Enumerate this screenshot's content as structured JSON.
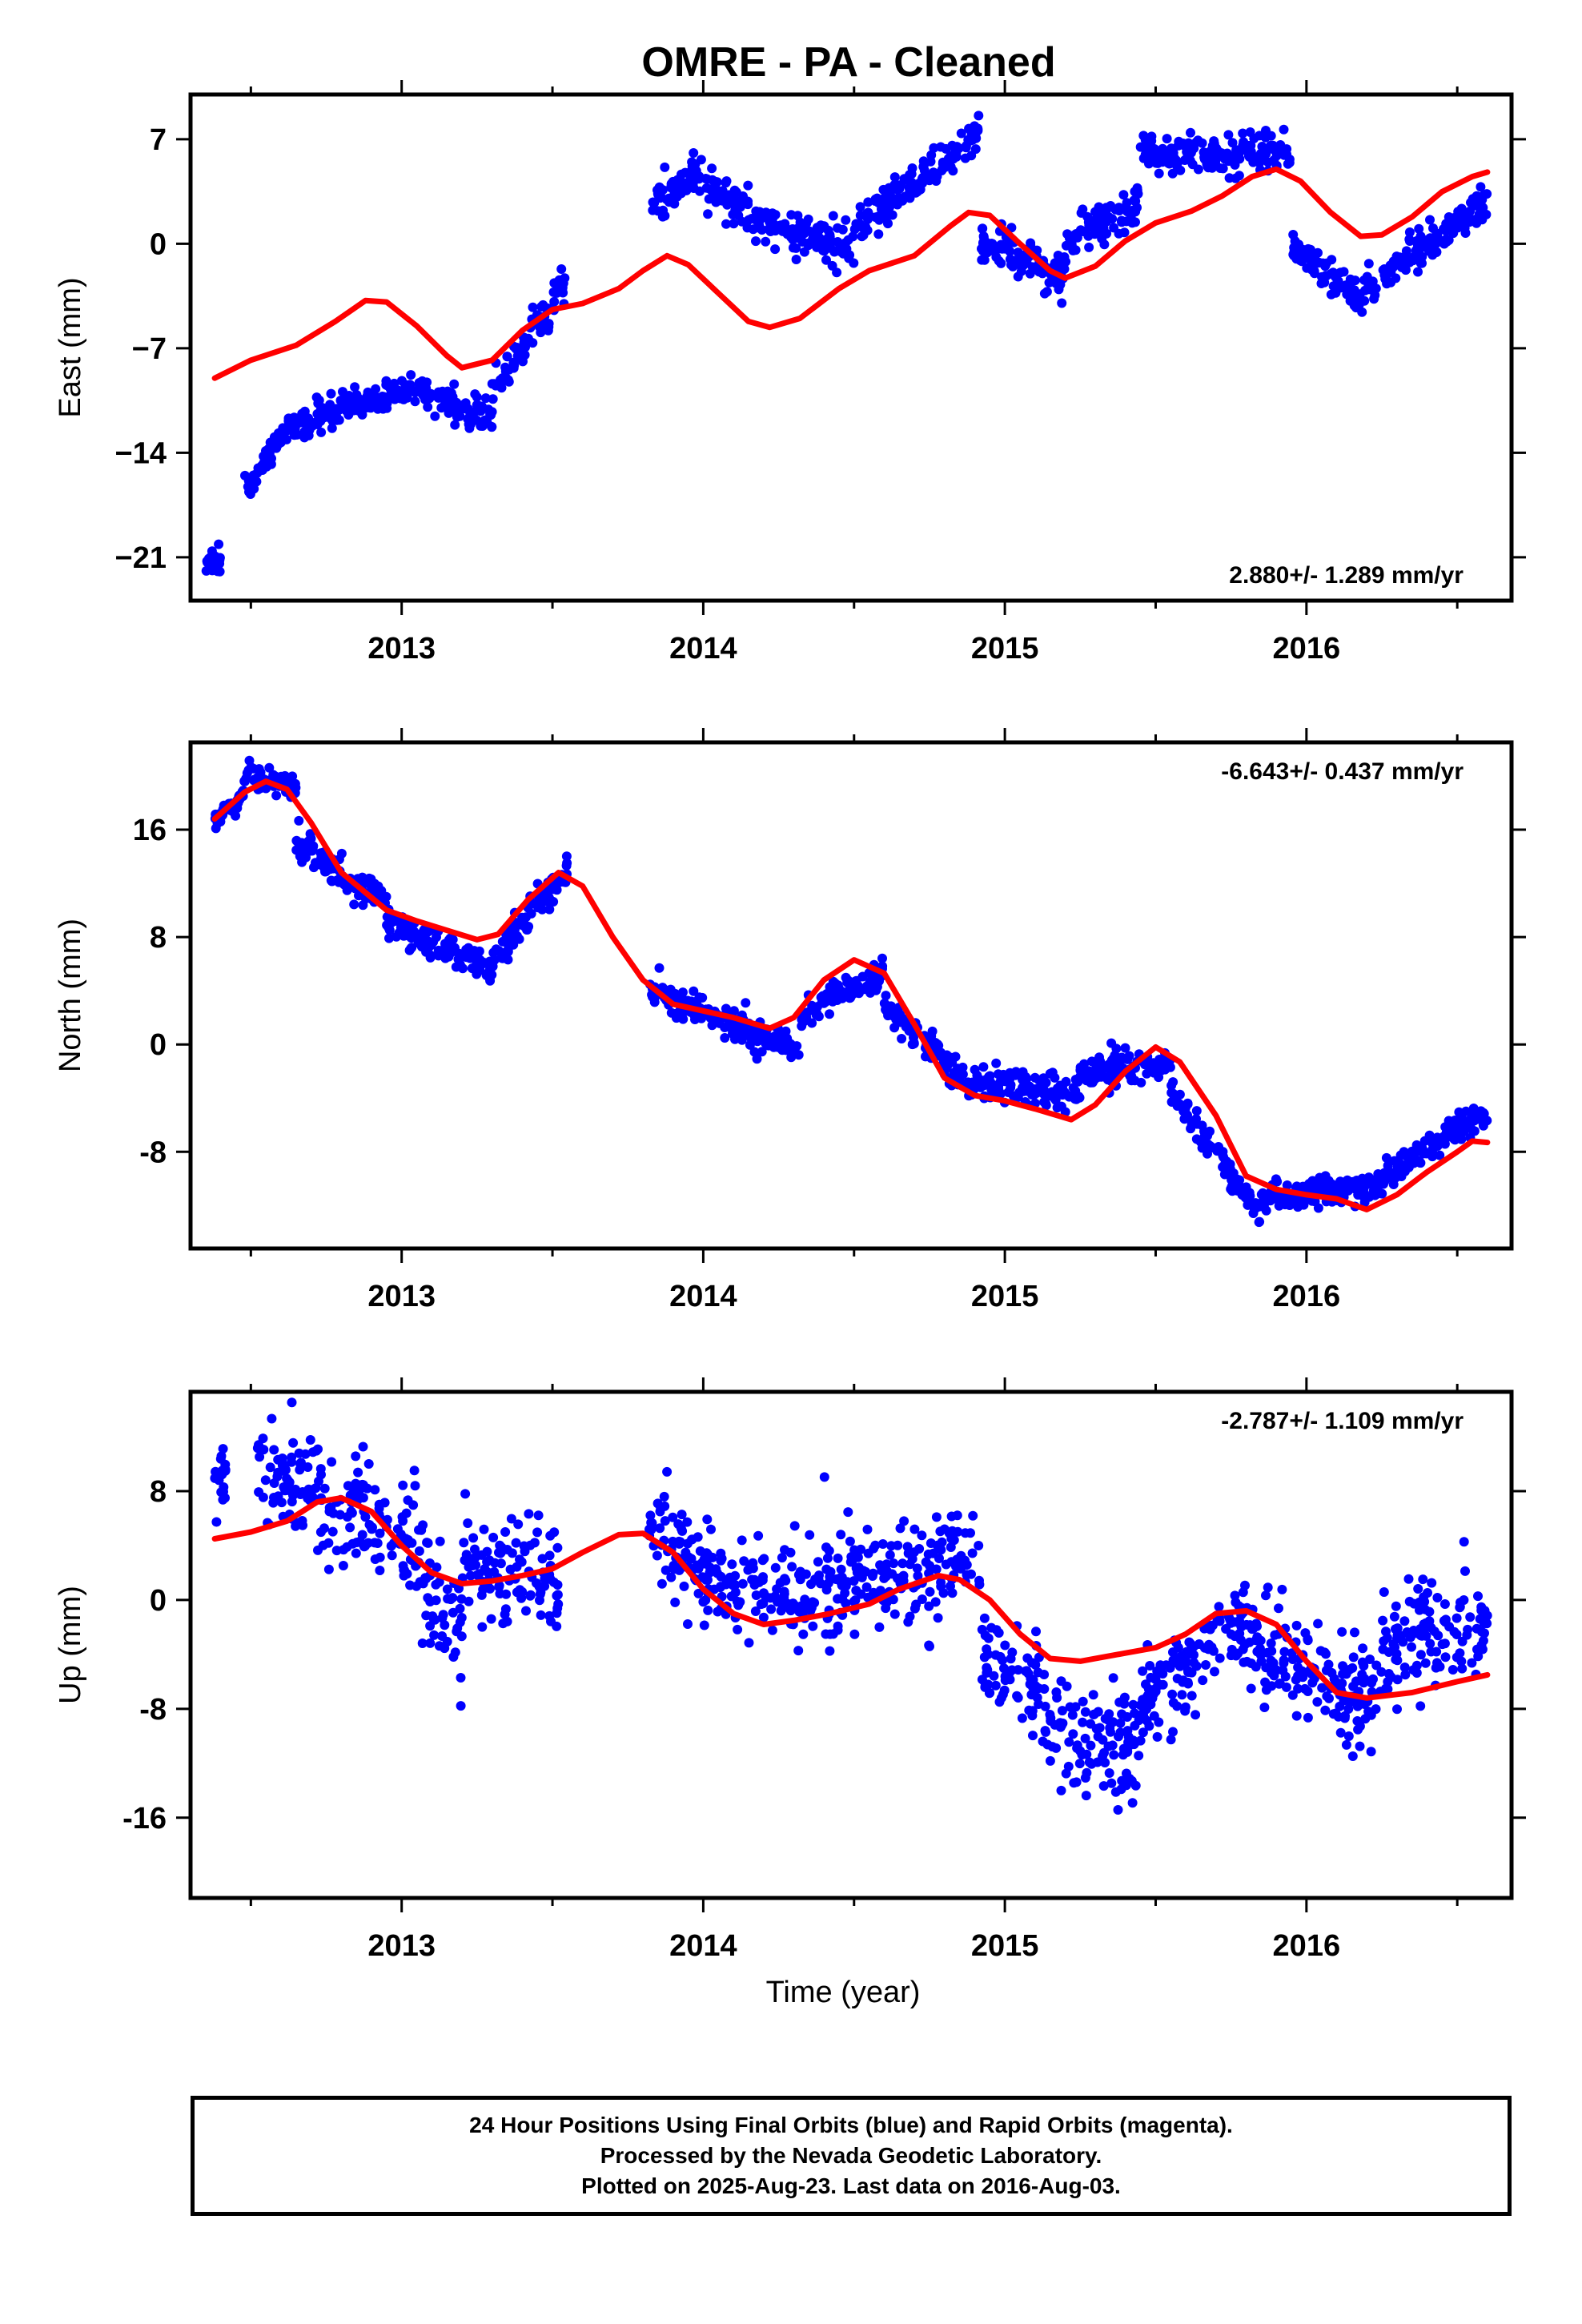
{
  "title": "OMRE  - PA - Cleaned",
  "footer": {
    "lines": [
      "24 Hour Positions Using Final Orbits (blue) and Rapid Orbits (magenta).",
      "Processed by the Nevada Geodetic Laboratory.",
      "Plotted on 2025-Aug-23. Last data on 2016-Aug-03."
    ]
  },
  "colors": {
    "data_points": "#0000ff",
    "model_curve": "#ff0000",
    "frame": "#000000"
  },
  "chart_data": [
    {
      "type": "scatter",
      "name": "East",
      "ylabel": "East (mm)",
      "xlabel": "",
      "xlim": [
        2012.3,
        2016.68
      ],
      "ylim": [
        -23.9,
        10.0
      ],
      "xticks": [
        2013,
        2014,
        2015,
        2016
      ],
      "yticks": [
        7,
        0,
        -7,
        -14,
        -21
      ],
      "ytick_labels": [
        "7",
        "0",
        "−7",
        "−14",
        "−21"
      ],
      "rate_label": "2.880+/- 1.289 mm/yr",
      "rate_position": "bottom-right",
      "model_curve": [
        [
          2012.38,
          -9.0
        ],
        [
          2012.5,
          -7.8
        ],
        [
          2012.65,
          -6.8
        ],
        [
          2012.78,
          -5.2
        ],
        [
          2012.88,
          -3.8
        ],
        [
          2012.95,
          -3.9
        ],
        [
          2013.05,
          -5.5
        ],
        [
          2013.15,
          -7.5
        ],
        [
          2013.2,
          -8.3
        ],
        [
          2013.3,
          -7.8
        ],
        [
          2013.4,
          -5.8
        ],
        [
          2013.5,
          -4.4
        ],
        [
          2013.6,
          -4.0
        ],
        [
          2013.72,
          -3.0
        ],
        [
          2013.8,
          -1.8
        ],
        [
          2013.88,
          -0.8
        ],
        [
          2013.95,
          -1.4
        ],
        [
          2014.05,
          -3.3
        ],
        [
          2014.15,
          -5.2
        ],
        [
          2014.22,
          -5.6
        ],
        [
          2014.32,
          -5.0
        ],
        [
          2014.45,
          -3.0
        ],
        [
          2014.55,
          -1.8
        ],
        [
          2014.7,
          -0.8
        ],
        [
          2014.82,
          1.2
        ],
        [
          2014.88,
          2.1
        ],
        [
          2014.95,
          1.9
        ],
        [
          2015.05,
          0.0
        ],
        [
          2015.15,
          -1.8
        ],
        [
          2015.2,
          -2.3
        ],
        [
          2015.3,
          -1.5
        ],
        [
          2015.4,
          0.2
        ],
        [
          2015.5,
          1.4
        ],
        [
          2015.62,
          2.2
        ],
        [
          2015.72,
          3.2
        ],
        [
          2015.82,
          4.5
        ],
        [
          2015.9,
          5.0
        ],
        [
          2015.98,
          4.2
        ],
        [
          2016.08,
          2.1
        ],
        [
          2016.18,
          0.5
        ],
        [
          2016.25,
          0.6
        ],
        [
          2016.35,
          1.8
        ],
        [
          2016.45,
          3.5
        ],
        [
          2016.55,
          4.5
        ],
        [
          2016.6,
          4.8
        ]
      ],
      "clusters": [
        {
          "x": [
            2012.35,
            2012.4
          ],
          "y_start": -21.0,
          "y_end": -21.5,
          "spread": 0.8
        },
        {
          "x": [
            2012.48,
            2012.6
          ],
          "y_start": -16.5,
          "y_end": -13.0,
          "spread": 0.9
        },
        {
          "x": [
            2012.6,
            2013.05
          ],
          "y_start": -12.5,
          "y_end": -9.5,
          "spread": 1.0
        },
        {
          "x": [
            2013.05,
            2013.3
          ],
          "y_start": -9.5,
          "y_end": -12.0,
          "spread": 1.0
        },
        {
          "x": [
            2013.3,
            2013.55
          ],
          "y_start": -10.0,
          "y_end": -2.5,
          "spread": 1.1
        },
        {
          "x": [
            2013.82,
            2013.95
          ],
          "y_start": 2.5,
          "y_end": 4.0,
          "spread": 1.1
        },
        {
          "x": [
            2013.95,
            2014.25
          ],
          "y_start": 4.5,
          "y_end": 1.0,
          "spread": 1.3
        },
        {
          "x": [
            2014.25,
            2014.5
          ],
          "y_start": 1.0,
          "y_end": -0.5,
          "spread": 1.2
        },
        {
          "x": [
            2014.5,
            2014.92
          ],
          "y_start": 1.0,
          "y_end": 7.5,
          "spread": 1.1
        },
        {
          "x": [
            2014.92,
            2015.2
          ],
          "y_start": 0.0,
          "y_end": -2.5,
          "spread": 1.3
        },
        {
          "x": [
            2015.2,
            2015.45
          ],
          "y_start": 0.5,
          "y_end": 2.5,
          "spread": 1.2
        },
        {
          "x": [
            2015.45,
            2015.95
          ],
          "y_start": 6.0,
          "y_end": 6.0,
          "spread": 1.2
        },
        {
          "x": [
            2015.95,
            2016.2
          ],
          "y_start": 0.0,
          "y_end": -4.0,
          "spread": 1.0
        },
        {
          "x": [
            2016.2,
            2016.6
          ],
          "y_start": -3.0,
          "y_end": 3.0,
          "spread": 1.2
        }
      ]
    },
    {
      "type": "scatter",
      "name": "North",
      "ylabel": "North (mm)",
      "xlabel": "",
      "xlim": [
        2012.3,
        2016.68
      ],
      "ylim": [
        -15.2,
        22.5
      ],
      "xticks": [
        2013,
        2014,
        2015,
        2016
      ],
      "yticks": [
        16,
        8,
        0,
        -8
      ],
      "ytick_labels": [
        "16",
        "8",
        "0",
        "-8"
      ],
      "rate_label": "-6.643+/- 0.437 mm/yr",
      "rate_position": "top-right",
      "model_curve": [
        [
          2012.38,
          16.8
        ],
        [
          2012.48,
          18.8
        ],
        [
          2012.55,
          19.6
        ],
        [
          2012.62,
          19.0
        ],
        [
          2012.7,
          16.5
        ],
        [
          2012.8,
          12.8
        ],
        [
          2012.95,
          10.0
        ],
        [
          2013.05,
          9.2
        ],
        [
          2013.15,
          8.5
        ],
        [
          2013.25,
          7.8
        ],
        [
          2013.32,
          8.2
        ],
        [
          2013.42,
          10.8
        ],
        [
          2013.52,
          12.8
        ],
        [
          2013.6,
          11.8
        ],
        [
          2013.7,
          8.0
        ],
        [
          2013.8,
          4.8
        ],
        [
          2013.9,
          3.0
        ],
        [
          2014.0,
          2.5
        ],
        [
          2014.1,
          2.0
        ],
        [
          2014.22,
          1.2
        ],
        [
          2014.3,
          2.0
        ],
        [
          2014.4,
          4.8
        ],
        [
          2014.5,
          6.3
        ],
        [
          2014.6,
          5.3
        ],
        [
          2014.7,
          1.5
        ],
        [
          2014.8,
          -2.5
        ],
        [
          2014.9,
          -3.8
        ],
        [
          2015.0,
          -4.2
        ],
        [
          2015.1,
          -4.8
        ],
        [
          2015.22,
          -5.6
        ],
        [
          2015.3,
          -4.5
        ],
        [
          2015.4,
          -2.0
        ],
        [
          2015.5,
          -0.2
        ],
        [
          2015.58,
          -1.3
        ],
        [
          2015.7,
          -5.3
        ],
        [
          2015.8,
          -9.8
        ],
        [
          2015.9,
          -10.8
        ],
        [
          2016.0,
          -11.2
        ],
        [
          2016.1,
          -11.5
        ],
        [
          2016.2,
          -12.3
        ],
        [
          2016.3,
          -11.2
        ],
        [
          2016.4,
          -9.5
        ],
        [
          2016.5,
          -8.0
        ],
        [
          2016.55,
          -7.2
        ],
        [
          2016.6,
          -7.3
        ]
      ],
      "clusters": [
        {
          "x": [
            2012.38,
            2012.48
          ],
          "y_start": 16.5,
          "y_end": 19.0,
          "spread": 0.8
        },
        {
          "x": [
            2012.48,
            2012.65
          ],
          "y_start": 20.0,
          "y_end": 19.0,
          "spread": 0.9
        },
        {
          "x": [
            2012.65,
            2012.95
          ],
          "y_start": 15.0,
          "y_end": 10.5,
          "spread": 1.1
        },
        {
          "x": [
            2012.95,
            2013.3
          ],
          "y_start": 9.0,
          "y_end": 5.5,
          "spread": 1.0
        },
        {
          "x": [
            2013.3,
            2013.55
          ],
          "y_start": 6.5,
          "y_end": 13.0,
          "spread": 1.0
        },
        {
          "x": [
            2013.82,
            2014.1
          ],
          "y_start": 4.0,
          "y_end": 1.5,
          "spread": 1.1
        },
        {
          "x": [
            2014.1,
            2014.32
          ],
          "y_start": 1.5,
          "y_end": -0.5,
          "spread": 1.0
        },
        {
          "x": [
            2014.32,
            2014.6
          ],
          "y_start": 2.0,
          "y_end": 5.5,
          "spread": 1.0
        },
        {
          "x": [
            2014.6,
            2014.9
          ],
          "y_start": 3.0,
          "y_end": -3.5,
          "spread": 1.1
        },
        {
          "x": [
            2014.9,
            2015.25
          ],
          "y_start": -3.0,
          "y_end": -3.5,
          "spread": 1.2
        },
        {
          "x": [
            2015.25,
            2015.55
          ],
          "y_start": -2.0,
          "y_end": -1.5,
          "spread": 1.1
        },
        {
          "x": [
            2015.55,
            2015.85
          ],
          "y_start": -3.5,
          "y_end": -12.5,
          "spread": 1.0
        },
        {
          "x": [
            2015.85,
            2016.25
          ],
          "y_start": -11.5,
          "y_end": -10.5,
          "spread": 0.9
        },
        {
          "x": [
            2016.25,
            2016.6
          ],
          "y_start": -10.0,
          "y_end": -5.0,
          "spread": 0.9
        }
      ]
    },
    {
      "type": "scatter",
      "name": "Up",
      "ylabel": "Up (mm)",
      "xlabel": "Time (year)",
      "xlim": [
        2012.3,
        2016.68
      ],
      "ylim": [
        -21.9,
        15.3
      ],
      "xticks": [
        2013,
        2014,
        2015,
        2016
      ],
      "yticks": [
        8,
        0,
        -8,
        -16
      ],
      "ytick_labels": [
        "8",
        "0",
        "-8",
        "-16"
      ],
      "rate_label": "-2.787+/- 1.109 mm/yr",
      "rate_position": "top-right",
      "model_curve": [
        [
          2012.38,
          4.5
        ],
        [
          2012.5,
          5.0
        ],
        [
          2012.62,
          5.8
        ],
        [
          2012.72,
          7.2
        ],
        [
          2012.8,
          7.5
        ],
        [
          2012.9,
          6.5
        ],
        [
          2013.0,
          4.0
        ],
        [
          2013.1,
          2.0
        ],
        [
          2013.2,
          1.2
        ],
        [
          2013.3,
          1.4
        ],
        [
          2013.4,
          1.8
        ],
        [
          2013.5,
          2.3
        ],
        [
          2013.6,
          3.5
        ],
        [
          2013.72,
          4.8
        ],
        [
          2013.8,
          4.9
        ],
        [
          2013.9,
          3.5
        ],
        [
          2014.0,
          0.8
        ],
        [
          2014.1,
          -1.0
        ],
        [
          2014.2,
          -1.8
        ],
        [
          2014.3,
          -1.5
        ],
        [
          2014.42,
          -1.0
        ],
        [
          2014.55,
          -0.3
        ],
        [
          2014.65,
          0.8
        ],
        [
          2014.78,
          1.8
        ],
        [
          2014.85,
          1.5
        ],
        [
          2014.95,
          0.0
        ],
        [
          2015.05,
          -2.5
        ],
        [
          2015.15,
          -4.3
        ],
        [
          2015.25,
          -4.5
        ],
        [
          2015.4,
          -3.9
        ],
        [
          2015.5,
          -3.5
        ],
        [
          2015.6,
          -2.5
        ],
        [
          2015.7,
          -1.0
        ],
        [
          2015.8,
          -0.8
        ],
        [
          2015.9,
          -1.8
        ],
        [
          2016.0,
          -4.5
        ],
        [
          2016.1,
          -6.8
        ],
        [
          2016.2,
          -7.2
        ],
        [
          2016.35,
          -6.8
        ],
        [
          2016.5,
          -6.0
        ],
        [
          2016.6,
          -5.5
        ]
      ],
      "clusters": [
        {
          "x": [
            2012.38,
            2012.42
          ],
          "y_start": 8.0,
          "y_end": 8.0,
          "spread": 3.0
        },
        {
          "x": [
            2012.52,
            2012.7
          ],
          "y_start": 9.0,
          "y_end": 9.0,
          "spread": 3.5
        },
        {
          "x": [
            2012.7,
            2013.05
          ],
          "y_start": 7.5,
          "y_end": 5.0,
          "spread": 3.5
        },
        {
          "x": [
            2013.05,
            2013.2
          ],
          "y_start": 1.5,
          "y_end": -2.5,
          "spread": 3.5
        },
        {
          "x": [
            2013.2,
            2013.52
          ],
          "y_start": 2.5,
          "y_end": 1.5,
          "spread": 3.5
        },
        {
          "x": [
            2013.82,
            2014.0
          ],
          "y_start": 5.5,
          "y_end": 2.5,
          "spread": 3.2
        },
        {
          "x": [
            2014.0,
            2014.45
          ],
          "y_start": 1.0,
          "y_end": 0.5,
          "spread": 3.6
        },
        {
          "x": [
            2014.45,
            2014.92
          ],
          "y_start": 1.5,
          "y_end": 2.5,
          "spread": 3.6
        },
        {
          "x": [
            2014.92,
            2015.12
          ],
          "y_start": -4.5,
          "y_end": -6.5,
          "spread": 3.0
        },
        {
          "x": [
            2015.12,
            2015.45
          ],
          "y_start": -9.0,
          "y_end": -11.5,
          "spread": 3.6
        },
        {
          "x": [
            2015.45,
            2015.7
          ],
          "y_start": -7.5,
          "y_end": -3.5,
          "spread": 3.2
        },
        {
          "x": [
            2015.7,
            2015.95
          ],
          "y_start": -1.5,
          "y_end": -4.0,
          "spread": 3.4
        },
        {
          "x": [
            2015.95,
            2016.25
          ],
          "y_start": -5.0,
          "y_end": -7.5,
          "spread": 3.2
        },
        {
          "x": [
            2016.25,
            2016.6
          ],
          "y_start": -3.0,
          "y_end": -1.5,
          "spread": 3.8
        }
      ]
    }
  ]
}
